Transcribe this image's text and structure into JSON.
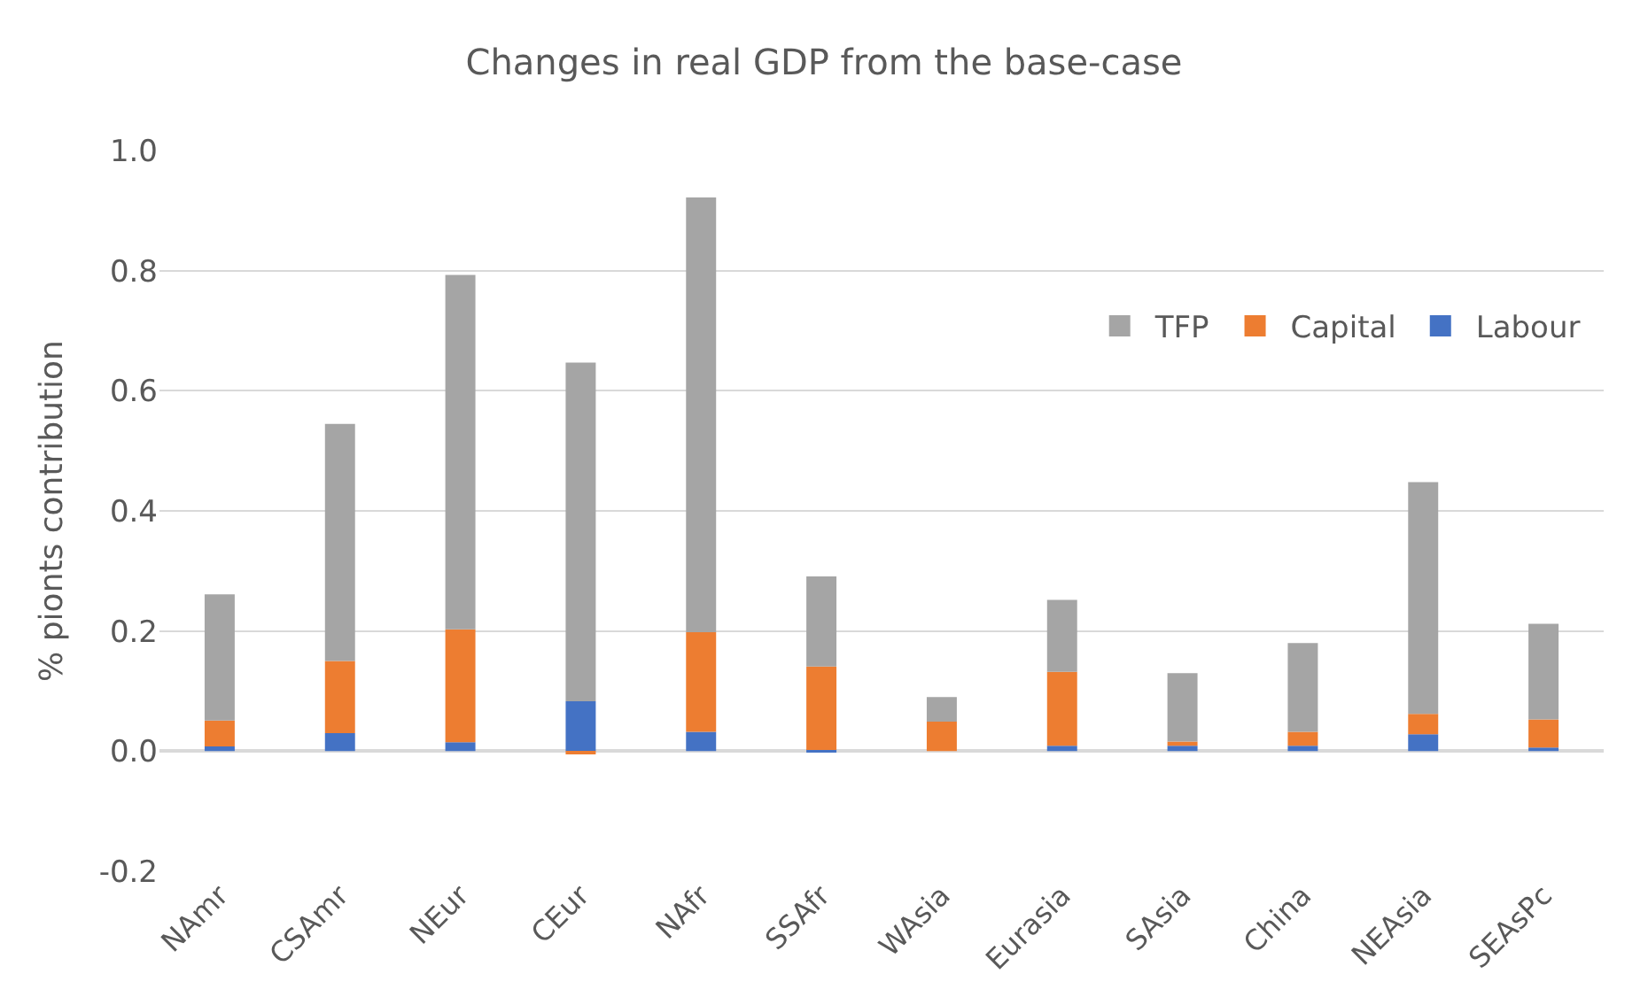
{
  "chart_data": {
    "type": "bar",
    "title": "Changes in real GDP from the base-case",
    "ylabel": "% pionts contribution",
    "categories": [
      "NAmr",
      "CSAmr",
      "NEur",
      "CEur",
      "NAfr",
      "SSAfr",
      "WAsia",
      "Eurasia",
      "SAsia",
      "China",
      "NEAsia",
      "SEAsPc"
    ],
    "stacked": true,
    "series": [
      {
        "name": "Labour",
        "color": "#4472c4",
        "values": [
          0.008,
          0.03,
          0.015,
          0.083,
          0.032,
          0.002,
          null,
          0.009,
          0.009,
          0.009,
          0.028,
          0.006
        ]
      },
      {
        "name": "Capital",
        "color": "#ed7d31",
        "values": [
          0.043,
          0.12,
          0.188,
          -0.005,
          0.166,
          0.139,
          0.049,
          0.123,
          0.007,
          0.023,
          0.034,
          0.047
        ]
      },
      {
        "name": "TFP",
        "color": "#a5a5a5",
        "values": [
          0.21,
          0.395,
          0.59,
          0.564,
          0.724,
          0.15,
          0.041,
          0.12,
          0.114,
          0.148,
          0.386,
          0.159
        ]
      }
    ],
    "ylim": [
      -0.2,
      1.0
    ],
    "yticks": [
      {
        "value": -0.2,
        "label": "-0.2"
      },
      {
        "value": 0,
        "label": "0.0"
      },
      0.2,
      0.4,
      0.6,
      0.8,
      {
        "value": 1,
        "label": "1.0"
      }
    ],
    "grid": "y",
    "legend": "top right"
  }
}
